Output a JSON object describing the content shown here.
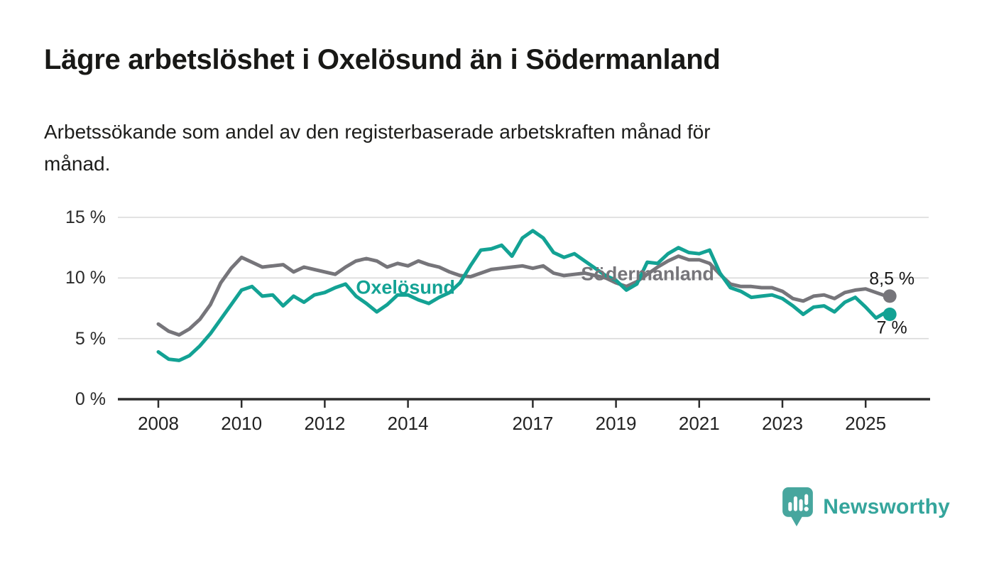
{
  "chart": {
    "title": "Lägre arbetslöshet i Oxelösund än i Södermanland",
    "subtitle_lines": [
      "Arbetssökande som andel av den registerbaserade arbetskraften månad för",
      "månad."
    ]
  },
  "chart_data": {
    "type": "line",
    "title": "Lägre arbetslöshet i Oxelösund än i Södermanland",
    "subtitle": "Arbetssökande som andel av den registerbaserade arbetskraften månad för månad.",
    "xlabel": "",
    "ylabel": "",
    "unit": "%",
    "grid": "horizontal-only",
    "legend": "inline-labels",
    "ylim": [
      0,
      15
    ],
    "xlim": [
      2007,
      2026.5
    ],
    "x_ticks": [
      2008,
      2010,
      2012,
      2014,
      2017,
      2019,
      2021,
      2023,
      2025
    ],
    "y_ticks": [
      {
        "value": 0,
        "label": "0 %"
      },
      {
        "value": 5,
        "label": "5 %"
      },
      {
        "value": 10,
        "label": "10 %"
      },
      {
        "value": 15,
        "label": "15 %"
      }
    ],
    "x": [
      2008,
      2008.25,
      2008.5,
      2008.75,
      2009,
      2009.25,
      2009.5,
      2009.75,
      2010,
      2010.25,
      2010.5,
      2010.75,
      2011,
      2011.25,
      2011.5,
      2011.75,
      2012,
      2012.25,
      2012.5,
      2012.75,
      2013,
      2013.25,
      2013.5,
      2013.75,
      2014,
      2014.25,
      2014.5,
      2014.75,
      2015,
      2015.25,
      2015.5,
      2015.75,
      2016,
      2016.25,
      2016.5,
      2016.75,
      2017,
      2017.25,
      2017.5,
      2017.75,
      2018,
      2018.25,
      2018.5,
      2018.75,
      2019,
      2019.25,
      2019.5,
      2019.75,
      2020,
      2020.25,
      2020.5,
      2020.75,
      2021,
      2021.25,
      2021.5,
      2021.75,
      2022,
      2022.25,
      2022.5,
      2022.75,
      2023,
      2023.25,
      2023.5,
      2023.75,
      2024,
      2024.25,
      2024.5,
      2024.75,
      2025,
      2025.25,
      2025.5,
      2025.58
    ],
    "series": [
      {
        "name": "Södermanland",
        "color": "#76757a",
        "end_label": "8,5 %",
        "end_value": 8.5,
        "values": [
          6.2,
          5.6,
          5.3,
          5.8,
          6.6,
          7.8,
          9.6,
          10.8,
          11.7,
          11.3,
          10.9,
          11.0,
          11.1,
          10.5,
          10.9,
          10.7,
          10.5,
          10.3,
          10.9,
          11.4,
          11.6,
          11.4,
          10.9,
          11.2,
          11.0,
          11.4,
          11.1,
          10.9,
          10.5,
          10.2,
          10.1,
          10.4,
          10.7,
          10.8,
          10.9,
          11.0,
          10.8,
          11.0,
          10.4,
          10.2,
          10.3,
          10.4,
          10.2,
          10.0,
          9.6,
          9.3,
          9.7,
          10.3,
          10.9,
          11.4,
          11.8,
          11.5,
          11.5,
          11.2,
          10.3,
          9.5,
          9.3,
          9.3,
          9.2,
          9.2,
          8.9,
          8.3,
          8.1,
          8.5,
          8.6,
          8.3,
          8.8,
          9.0,
          9.1,
          8.8,
          8.5,
          8.5
        ]
      },
      {
        "name": "Oxelösund",
        "color": "#13a294",
        "end_label": "7 %",
        "end_value": 7.0,
        "values": [
          3.9,
          3.3,
          3.2,
          3.6,
          4.4,
          5.4,
          6.6,
          7.8,
          9.0,
          9.3,
          8.5,
          8.6,
          7.7,
          8.5,
          8.0,
          8.6,
          8.8,
          9.2,
          9.5,
          8.5,
          7.9,
          7.2,
          7.8,
          8.6,
          8.6,
          8.2,
          7.9,
          8.4,
          8.8,
          9.6,
          11.0,
          12.3,
          12.4,
          12.7,
          11.8,
          13.3,
          13.9,
          13.3,
          12.1,
          11.7,
          12.0,
          11.4,
          10.8,
          10.2,
          9.8,
          9.0,
          9.5,
          11.3,
          11.2,
          12.0,
          12.5,
          12.1,
          12.0,
          12.3,
          10.4,
          9.2,
          8.9,
          8.4,
          8.5,
          8.6,
          8.3,
          7.7,
          7.0,
          7.6,
          7.7,
          7.2,
          8.0,
          8.4,
          7.6,
          6.7,
          7.2,
          7.0
        ]
      }
    ],
    "annotations": [
      {
        "text": "Södermanland",
        "x": 2019.76,
        "y": 10.3,
        "color": "#76757a"
      },
      {
        "text": "Oxelösund",
        "x": 2013.94,
        "y": 9.2,
        "color": "#13a294"
      }
    ]
  },
  "branding": {
    "logo_text": "Newsworthy",
    "logo_icon": "speech-bubble-bar-chart-icon"
  }
}
